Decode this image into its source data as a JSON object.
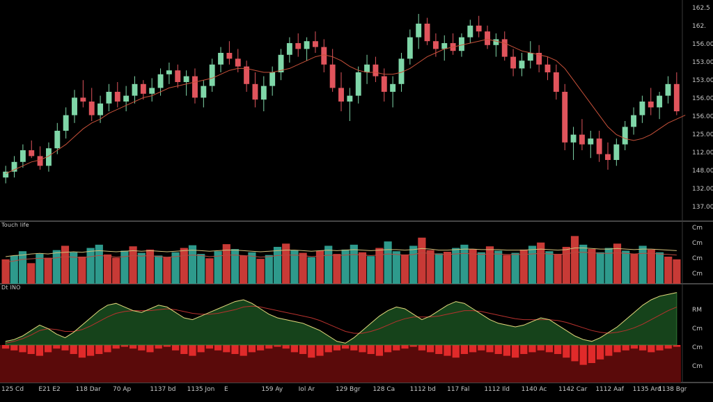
{
  "chart_data": [
    {
      "type": "candlestick",
      "pane": "price",
      "ylim": [
        0,
        100
      ],
      "right_axis_labels": [
        "162.5",
        "162.",
        "156.00",
        "153.00",
        "153.00",
        "156.00",
        "156.00",
        "125.00",
        "112.00",
        "148.00",
        "132.00",
        "137.00"
      ],
      "ma_color": "#c8513a",
      "up_color": "#7fd6a8",
      "down_color": "#e0545c",
      "candles": [
        {
          "o": 16,
          "h": 22,
          "l": 13,
          "c": 19
        },
        {
          "o": 19,
          "h": 27,
          "l": 16,
          "c": 24
        },
        {
          "o": 24,
          "h": 33,
          "l": 21,
          "c": 30
        },
        {
          "o": 30,
          "h": 35,
          "l": 26,
          "c": 27
        },
        {
          "o": 27,
          "h": 32,
          "l": 20,
          "c": 22
        },
        {
          "o": 22,
          "h": 34,
          "l": 19,
          "c": 31
        },
        {
          "o": 31,
          "h": 44,
          "l": 28,
          "c": 40
        },
        {
          "o": 40,
          "h": 52,
          "l": 36,
          "c": 48
        },
        {
          "o": 48,
          "h": 61,
          "l": 44,
          "c": 57
        },
        {
          "o": 57,
          "h": 66,
          "l": 52,
          "c": 55
        },
        {
          "o": 55,
          "h": 62,
          "l": 45,
          "c": 48
        },
        {
          "o": 48,
          "h": 58,
          "l": 44,
          "c": 54
        },
        {
          "o": 54,
          "h": 64,
          "l": 50,
          "c": 60
        },
        {
          "o": 60,
          "h": 65,
          "l": 52,
          "c": 55
        },
        {
          "o": 55,
          "h": 63,
          "l": 50,
          "c": 58
        },
        {
          "o": 58,
          "h": 68,
          "l": 54,
          "c": 64
        },
        {
          "o": 64,
          "h": 66,
          "l": 56,
          "c": 59
        },
        {
          "o": 59,
          "h": 67,
          "l": 55,
          "c": 62
        },
        {
          "o": 62,
          "h": 72,
          "l": 58,
          "c": 69
        },
        {
          "o": 69,
          "h": 75,
          "l": 64,
          "c": 71
        },
        {
          "o": 71,
          "h": 74,
          "l": 62,
          "c": 65
        },
        {
          "o": 65,
          "h": 71,
          "l": 58,
          "c": 68
        },
        {
          "o": 68,
          "h": 72,
          "l": 54,
          "c": 57
        },
        {
          "o": 57,
          "h": 66,
          "l": 52,
          "c": 63
        },
        {
          "o": 63,
          "h": 77,
          "l": 60,
          "c": 74
        },
        {
          "o": 74,
          "h": 83,
          "l": 70,
          "c": 80
        },
        {
          "o": 80,
          "h": 86,
          "l": 74,
          "c": 77
        },
        {
          "o": 77,
          "h": 82,
          "l": 70,
          "c": 73
        },
        {
          "o": 73,
          "h": 76,
          "l": 60,
          "c": 64
        },
        {
          "o": 64,
          "h": 70,
          "l": 52,
          "c": 56
        },
        {
          "o": 56,
          "h": 68,
          "l": 50,
          "c": 63
        },
        {
          "o": 63,
          "h": 73,
          "l": 58,
          "c": 70
        },
        {
          "o": 70,
          "h": 82,
          "l": 66,
          "c": 79
        },
        {
          "o": 79,
          "h": 88,
          "l": 75,
          "c": 85
        },
        {
          "o": 85,
          "h": 90,
          "l": 78,
          "c": 82
        },
        {
          "o": 82,
          "h": 88,
          "l": 76,
          "c": 86
        },
        {
          "o": 86,
          "h": 91,
          "l": 80,
          "c": 83
        },
        {
          "o": 83,
          "h": 87,
          "l": 70,
          "c": 74
        },
        {
          "o": 74,
          "h": 82,
          "l": 60,
          "c": 62
        },
        {
          "o": 62,
          "h": 70,
          "l": 50,
          "c": 55
        },
        {
          "o": 55,
          "h": 62,
          "l": 45,
          "c": 58
        },
        {
          "o": 58,
          "h": 73,
          "l": 54,
          "c": 70
        },
        {
          "o": 70,
          "h": 79,
          "l": 64,
          "c": 74
        },
        {
          "o": 74,
          "h": 78,
          "l": 65,
          "c": 68
        },
        {
          "o": 68,
          "h": 72,
          "l": 55,
          "c": 60
        },
        {
          "o": 60,
          "h": 68,
          "l": 52,
          "c": 64
        },
        {
          "o": 64,
          "h": 80,
          "l": 60,
          "c": 77
        },
        {
          "o": 77,
          "h": 92,
          "l": 74,
          "c": 88
        },
        {
          "o": 88,
          "h": 100,
          "l": 82,
          "c": 95
        },
        {
          "o": 95,
          "h": 98,
          "l": 84,
          "c": 86
        },
        {
          "o": 86,
          "h": 90,
          "l": 78,
          "c": 82
        },
        {
          "o": 82,
          "h": 89,
          "l": 76,
          "c": 85
        },
        {
          "o": 85,
          "h": 90,
          "l": 79,
          "c": 81
        },
        {
          "o": 81,
          "h": 90,
          "l": 78,
          "c": 88
        },
        {
          "o": 88,
          "h": 97,
          "l": 85,
          "c": 94
        },
        {
          "o": 94,
          "h": 99,
          "l": 88,
          "c": 91
        },
        {
          "o": 91,
          "h": 94,
          "l": 82,
          "c": 84
        },
        {
          "o": 84,
          "h": 90,
          "l": 78,
          "c": 87
        },
        {
          "o": 87,
          "h": 91,
          "l": 76,
          "c": 78
        },
        {
          "o": 78,
          "h": 82,
          "l": 68,
          "c": 72
        },
        {
          "o": 72,
          "h": 80,
          "l": 68,
          "c": 76
        },
        {
          "o": 76,
          "h": 86,
          "l": 72,
          "c": 80
        },
        {
          "o": 80,
          "h": 84,
          "l": 70,
          "c": 74
        },
        {
          "o": 74,
          "h": 78,
          "l": 66,
          "c": 70
        },
        {
          "o": 70,
          "h": 74,
          "l": 56,
          "c": 60
        },
        {
          "o": 60,
          "h": 64,
          "l": 30,
          "c": 34
        },
        {
          "o": 34,
          "h": 42,
          "l": 25,
          "c": 38
        },
        {
          "o": 38,
          "h": 46,
          "l": 30,
          "c": 33
        },
        {
          "o": 33,
          "h": 40,
          "l": 26,
          "c": 36
        },
        {
          "o": 36,
          "h": 40,
          "l": 24,
          "c": 28
        },
        {
          "o": 28,
          "h": 34,
          "l": 20,
          "c": 25
        },
        {
          "o": 25,
          "h": 36,
          "l": 22,
          "c": 33
        },
        {
          "o": 33,
          "h": 45,
          "l": 30,
          "c": 42
        },
        {
          "o": 42,
          "h": 52,
          "l": 38,
          "c": 48
        },
        {
          "o": 48,
          "h": 58,
          "l": 44,
          "c": 55
        },
        {
          "o": 55,
          "h": 62,
          "l": 48,
          "c": 52
        },
        {
          "o": 52,
          "h": 60,
          "l": 46,
          "c": 58
        },
        {
          "o": 58,
          "h": 68,
          "l": 54,
          "c": 64
        },
        {
          "o": 64,
          "h": 70,
          "l": 48,
          "c": 50
        }
      ],
      "ma": [
        18,
        20,
        22,
        24,
        25,
        27,
        30,
        33,
        37,
        41,
        44,
        46,
        49,
        51,
        53,
        55,
        57,
        58,
        60,
        62,
        63,
        64,
        65,
        66,
        67,
        69,
        71,
        72,
        72,
        71,
        70,
        70,
        71,
        72,
        74,
        76,
        78,
        79,
        78,
        76,
        73,
        71,
        70,
        70,
        69,
        69,
        70,
        72,
        75,
        78,
        80,
        82,
        83,
        84,
        85,
        86,
        87,
        86,
        85,
        83,
        81,
        80,
        79,
        78,
        76,
        72,
        66,
        60,
        54,
        48,
        42,
        38,
        36,
        35,
        36,
        38,
        41,
        44,
        46,
        48
      ]
    },
    {
      "type": "bar",
      "pane": "volume",
      "ylim": [
        0,
        100
      ],
      "right_axis_labels": [
        "Cm",
        "Cm",
        "Cm",
        "Cm"
      ],
      "values": [
        45,
        52,
        60,
        38,
        55,
        48,
        62,
        70,
        58,
        50,
        66,
        72,
        54,
        48,
        61,
        69,
        57,
        63,
        52,
        49,
        58,
        66,
        71,
        55,
        47,
        60,
        73,
        64,
        52,
        58,
        46,
        53,
        68,
        74,
        62,
        57,
        49,
        61,
        70,
        55,
        63,
        72,
        58,
        51,
        66,
        78,
        60,
        54,
        70,
        85,
        62,
        56,
        59,
        66,
        72,
        64,
        58,
        69,
        61,
        53,
        57,
        63,
        70,
        76,
        60,
        55,
        68,
        88,
        72,
        64,
        58,
        66,
        74,
        61,
        55,
        70,
        63,
        58,
        50,
        45
      ],
      "colors": [
        "r",
        "t",
        "t",
        "r",
        "t",
        "r",
        "t",
        "r",
        "t",
        "r",
        "t",
        "t",
        "r",
        "r",
        "t",
        "r",
        "t",
        "r",
        "t",
        "r",
        "t",
        "r",
        "t",
        "t",
        "r",
        "t",
        "r",
        "t",
        "r",
        "t",
        "r",
        "t",
        "t",
        "r",
        "t",
        "r",
        "t",
        "r",
        "t",
        "r",
        "t",
        "t",
        "r",
        "t",
        "r",
        "t",
        "t",
        "r",
        "t",
        "r",
        "r",
        "t",
        "r",
        "t",
        "t",
        "r",
        "t",
        "r",
        "t",
        "r",
        "t",
        "r",
        "t",
        "r",
        "t",
        "r",
        "r",
        "r",
        "t",
        "r",
        "t",
        "t",
        "r",
        "t",
        "r",
        "t",
        "r",
        "t",
        "r",
        "r"
      ],
      "line1": [
        50,
        52,
        53,
        55,
        56,
        55,
        57,
        58,
        59,
        58,
        60,
        61,
        60,
        59,
        60,
        61,
        60,
        61,
        60,
        59,
        60,
        61,
        62,
        61,
        60,
        61,
        62,
        62,
        61,
        60,
        59,
        60,
        61,
        62,
        62,
        61,
        60,
        61,
        62,
        61,
        62,
        63,
        62,
        61,
        62,
        63,
        63,
        62,
        63,
        65,
        64,
        62,
        62,
        63,
        64,
        64,
        63,
        63,
        63,
        62,
        62,
        62,
        63,
        64,
        63,
        62,
        63,
        66,
        66,
        65,
        64,
        64,
        65,
        64,
        63,
        64,
        64,
        63,
        62,
        61
      ],
      "line2": [
        40,
        42,
        45,
        46,
        47,
        46,
        48,
        50,
        49,
        48,
        50,
        52,
        51,
        49,
        50,
        52,
        51,
        52,
        50,
        49,
        50,
        52,
        53,
        52,
        50,
        51,
        53,
        53,
        52,
        51,
        49,
        50,
        52,
        53,
        53,
        52,
        50,
        51,
        53,
        52,
        53,
        54,
        53,
        52,
        53,
        55,
        54,
        53,
        54,
        57,
        56,
        54,
        54,
        55,
        56,
        55,
        54,
        55,
        55,
        54,
        54,
        54,
        55,
        56,
        55,
        54,
        55,
        58,
        58,
        57,
        56,
        56,
        57,
        56,
        55,
        56,
        56,
        55,
        54,
        53
      ]
    },
    {
      "type": "area",
      "pane": "oscillator",
      "ylim": [
        -40,
        60
      ],
      "right_axis_labels": [
        "RM",
        "Cm",
        "Cm",
        "Cm"
      ],
      "line_fast": [
        4,
        6,
        10,
        16,
        22,
        18,
        12,
        8,
        14,
        22,
        30,
        38,
        44,
        46,
        42,
        38,
        36,
        40,
        44,
        42,
        36,
        30,
        28,
        32,
        36,
        40,
        44,
        48,
        50,
        46,
        40,
        34,
        30,
        28,
        26,
        24,
        20,
        16,
        10,
        4,
        2,
        8,
        16,
        24,
        32,
        38,
        42,
        40,
        34,
        28,
        32,
        38,
        44,
        48,
        46,
        40,
        34,
        28,
        24,
        22,
        20,
        22,
        26,
        30,
        28,
        22,
        16,
        10,
        6,
        4,
        8,
        14,
        20,
        28,
        36,
        44,
        50,
        54,
        56,
        58
      ],
      "line_slow": [
        2,
        4,
        7,
        11,
        16,
        18,
        17,
        15,
        15,
        17,
        21,
        26,
        31,
        35,
        37,
        38,
        38,
        38,
        39,
        40,
        39,
        37,
        35,
        34,
        34,
        35,
        37,
        39,
        42,
        43,
        42,
        40,
        38,
        36,
        34,
        32,
        30,
        27,
        23,
        19,
        15,
        13,
        13,
        15,
        18,
        22,
        26,
        29,
        31,
        31,
        31,
        32,
        34,
        36,
        38,
        38,
        37,
        35,
        33,
        31,
        29,
        28,
        28,
        28,
        28,
        27,
        25,
        22,
        19,
        16,
        14,
        13,
        14,
        16,
        19,
        23,
        28,
        33,
        38,
        42
      ],
      "histogram": [
        -4,
        -6,
        -8,
        -10,
        -12,
        -8,
        -4,
        -6,
        -10,
        -14,
        -12,
        -10,
        -8,
        -4,
        -2,
        -4,
        -6,
        -8,
        -4,
        -2,
        -6,
        -10,
        -12,
        -8,
        -4,
        -6,
        -8,
        -10,
        -12,
        -8,
        -6,
        -4,
        -2,
        -4,
        -8,
        -10,
        -14,
        -12,
        -8,
        -6,
        -4,
        -6,
        -8,
        -10,
        -12,
        -8,
        -6,
        -4,
        -2,
        -6,
        -8,
        -10,
        -12,
        -14,
        -10,
        -8,
        -6,
        -8,
        -10,
        -12,
        -14,
        -10,
        -8,
        -6,
        -8,
        -10,
        -14,
        -18,
        -22,
        -20,
        -16,
        -12,
        -8,
        -6,
        -4,
        -6,
        -8,
        -6,
        -4,
        -2
      ]
    }
  ],
  "panes": {
    "volume_label": "Touch life",
    "oscillator_label": "Dt INO"
  },
  "x_axis_labels": [
    "125 Cd",
    "E21 E2",
    "118 Dar",
    "70 Ap",
    "1137 bd",
    "1135 Jon",
    "E",
    "159 Ay",
    "Iol Ar",
    "129 Bgr",
    "128 Ca",
    "1112 bd",
    "117 Fal",
    "1112 Ild",
    "1140 Ac",
    "1142 Car",
    "1112 Aaf",
    "1135 Ard",
    "1138 Bgr"
  ],
  "colors": {
    "background": "#000000",
    "up": "#7fd6a8",
    "down": "#e0545c",
    "volume_teal": "#2e9a8c",
    "volume_red": "#c83a36",
    "ma": "#c8513a",
    "osc_fast": "#e2d27a",
    "osc_slow": "#b8322e",
    "osc_area": "#1e5a24",
    "hist_band": "#5a0a0a",
    "hist_bar": "#e02a2a",
    "separator": "#8a8a8a"
  }
}
